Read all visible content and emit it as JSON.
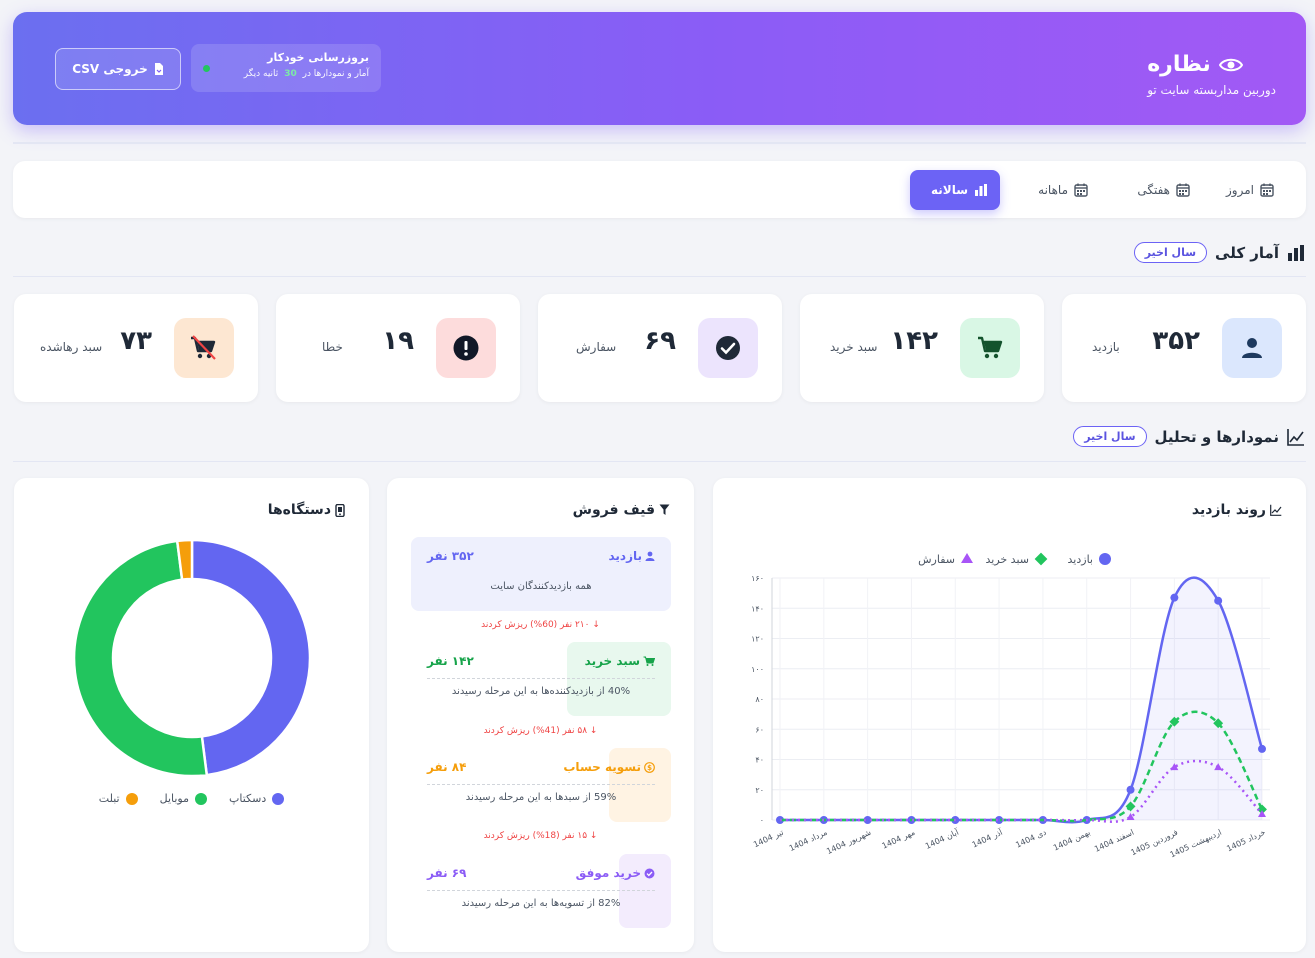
{
  "header": {
    "title": "نظاره",
    "subtitle": "دوربین مداربسته سایت تو",
    "auto_update_title": "بروزرسانی خودکار",
    "auto_update_prefix": "آمار و نمودارها در",
    "auto_update_seconds": "30",
    "auto_update_suffix": "ثانیه دیگر",
    "export_label": "خروجی CSV"
  },
  "tabs": [
    {
      "label": "امروز",
      "active": false
    },
    {
      "label": "هفتگی",
      "active": false
    },
    {
      "label": "ماهانه",
      "active": false
    },
    {
      "label": "سالانه",
      "active": true
    }
  ],
  "overview": {
    "title": "آمار کلی",
    "badge": "سال اخیر",
    "stats": [
      {
        "label": "بازدید",
        "value": "۳۵۲",
        "icon": "user-icon",
        "bg": "#dbe7fd",
        "color": "#1e3a8a"
      },
      {
        "label": "سبد خرید",
        "value": "۱۴۲",
        "icon": "cart-icon",
        "bg": "#d9f7e5",
        "color": "#166534"
      },
      {
        "label": "سفارش",
        "value": "۶۹",
        "icon": "check-circle-icon",
        "bg": "#ece4fd",
        "color": "#1f2937"
      },
      {
        "label": "خطا",
        "value": "۱۹",
        "icon": "exclamation-circle-icon",
        "bg": "#fddcdc",
        "color": "#111827"
      },
      {
        "label": "سبد رهاشده",
        "value": "۷۳",
        "icon": "abandoned-cart-icon",
        "bg": "#fde7d2",
        "color": "#1f2937"
      }
    ]
  },
  "analytics": {
    "title": "نمودارها و تحلیل",
    "badge": "سال اخیر"
  },
  "devices": {
    "title": "دستگاه‌ها",
    "legend": [
      {
        "name": "دسکتاپ",
        "color": "#6366f1"
      },
      {
        "name": "موبایل",
        "color": "#22c55e"
      },
      {
        "name": "تبلت",
        "color": "#f59e0b"
      }
    ]
  },
  "funnel": {
    "title": "قیف فروش",
    "stages": [
      {
        "name": "بازدید",
        "count": "۳۵۲ نفر",
        "desc": "همه بازدیدکنندگان سایت",
        "color": "#6366f1",
        "bg": "#eef0fd",
        "icon": "user-icon"
      },
      {
        "name": "سبد خرید",
        "count": "۱۴۲ نفر",
        "desc": "40% از بازدیدکننده‌ها به این مرحله رسیدند",
        "color": "#16a34a",
        "bg": "#e8f8ee",
        "icon": "cart-icon"
      },
      {
        "name": "تسویه حساب",
        "count": "۸۴ نفر",
        "desc": "59% از سبدها به این مرحله رسیدند",
        "color": "#f59e0b",
        "bg": "#fff3e3",
        "icon": "dollar-circle-icon"
      },
      {
        "name": "خرید موفق",
        "count": "۶۹ نفر",
        "desc": "82% از تسویه‌ها به این مرحله رسیدند",
        "color": "#8b5cf6",
        "bg": "#f3ecfd",
        "icon": "check-circle-icon"
      }
    ],
    "drops": [
      "↓ ۲۱۰ نفر (60%) ریزش کردند",
      "↓ ۵۸ نفر (41%) ریزش کردند",
      "↓ ۱۵ نفر (18%) ریزش کردند"
    ]
  },
  "chart_data": [
    {
      "type": "pie",
      "title": "دستگاه‌ها",
      "categories": [
        "دسکتاپ",
        "موبایل",
        "تبلت"
      ],
      "values": [
        48,
        50,
        2
      ],
      "colors": [
        "#6366f1",
        "#22c55e",
        "#f59e0b"
      ]
    },
    {
      "type": "line",
      "title": "روند بازدید",
      "categories": [
        "تیر 1404",
        "مرداد 1404",
        "شهریور 1404",
        "مهر 1404",
        "آبان 1404",
        "آذر 1404",
        "دی 1404",
        "بهمن 1404",
        "اسفند 1404",
        "فروردین 1405",
        "اردیبهشت 1405",
        "خرداد 1405"
      ],
      "ylim": [
        0,
        160
      ],
      "yticks": [
        "۰",
        "۲۰",
        "۴۰",
        "۶۰",
        "۸۰",
        "۱۰۰",
        "۱۲۰",
        "۱۴۰",
        "۱۶۰"
      ],
      "series": [
        {
          "name": "بازدید",
          "color": "#6366f1",
          "values": [
            0,
            0,
            0,
            0,
            0,
            0,
            0,
            0,
            20,
            147,
            145,
            47
          ]
        },
        {
          "name": "سبد خرید",
          "color": "#22c55e",
          "values": [
            0,
            0,
            0,
            0,
            0,
            0,
            0,
            0,
            9,
            65,
            64,
            7
          ]
        },
        {
          "name": "سفارش",
          "color": "#a855f7",
          "values": [
            0,
            0,
            0,
            0,
            0,
            0,
            0,
            0,
            2,
            35,
            35,
            4
          ]
        }
      ]
    }
  ]
}
